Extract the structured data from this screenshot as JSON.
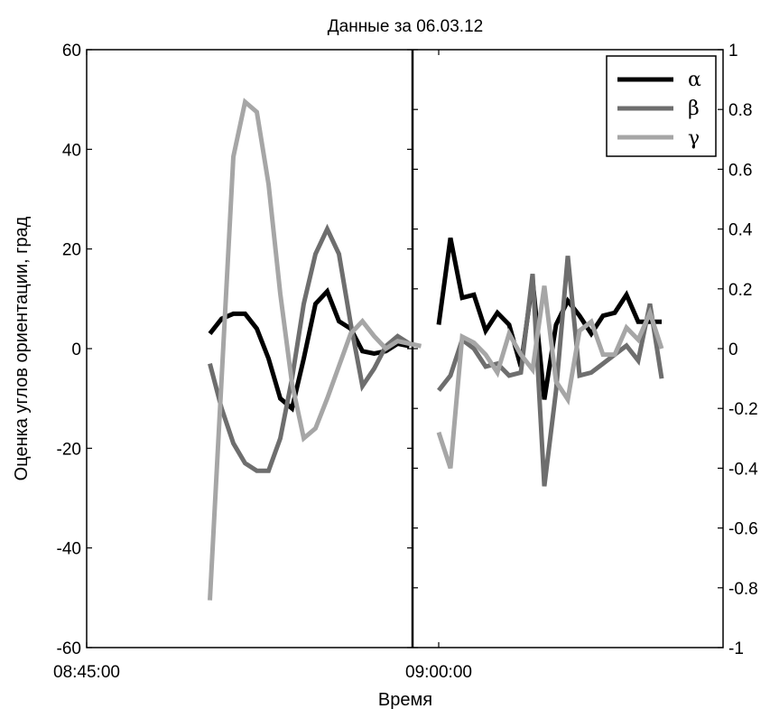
{
  "chart_data": {
    "type": "line",
    "title": "Данные за 06.03.12",
    "xlabel": "Время",
    "ylabel": "Оценка углов ориентации, град",
    "x_ticks": [
      "08:45:00",
      "09:00:00"
    ],
    "left_axis": {
      "ylim": [
        -60,
        60
      ],
      "ticks": [
        "-60",
        "-40",
        "-20",
        "0",
        "20",
        "40",
        "60"
      ]
    },
    "right_axis": {
      "ylim": [
        -1,
        1
      ],
      "ticks": [
        "-1",
        "-0.8",
        "-0.6",
        "-0.4",
        "-0.2",
        "0",
        "0.2",
        "0.4",
        "0.6",
        "0.8",
        "1"
      ]
    },
    "legend": {
      "placement": "top-right",
      "entries": [
        "α",
        "β",
        "γ"
      ]
    },
    "grid": false,
    "series_colors": {
      "alpha": "#000000",
      "beta": "#6e6e6e",
      "gamma": "#a6a6a6"
    },
    "left_panel": {
      "x": [
        "08:50:15",
        "08:50:45",
        "08:51:15",
        "08:51:45",
        "08:52:15",
        "08:52:45",
        "08:53:15",
        "08:53:45",
        "08:54:15",
        "08:54:45",
        "08:55:15",
        "08:55:45",
        "08:56:15",
        "08:56:45",
        "08:57:15",
        "08:57:45",
        "08:58:15",
        "08:58:45",
        "08:59:15",
        "08:59:45"
      ],
      "series": [
        {
          "name": "α",
          "values": [
            3,
            6,
            7,
            7,
            4,
            -2,
            -10,
            -12,
            -2,
            9,
            11.5,
            5.5,
            4,
            -0.5,
            -1,
            -0.5,
            1,
            0.5,
            null,
            null
          ]
        },
        {
          "name": "β",
          "values": [
            -3,
            -12,
            -19,
            -23,
            -24.5,
            -24.5,
            -18,
            -6,
            9,
            19,
            24,
            19,
            5,
            -7.5,
            -4,
            0.5,
            2.5,
            1,
            null,
            null
          ]
        },
        {
          "name": "γ",
          "values": [
            -50.5,
            -6,
            38.5,
            49.5,
            47.5,
            33,
            11,
            -7,
            -18,
            -16,
            -10,
            -3.5,
            3,
            5.5,
            2.5,
            0,
            1.5,
            1,
            0.5,
            null
          ]
        }
      ]
    },
    "right_panel": {
      "x": [
        "09:00:00",
        "09:00:30",
        "09:01:00",
        "09:01:30",
        "09:02:00",
        "09:02:30",
        "09:03:00",
        "09:03:30",
        "09:04:00",
        "09:04:30",
        "09:05:00",
        "09:05:30",
        "09:06:00",
        "09:06:30",
        "09:07:00",
        "09:07:30",
        "09:08:00",
        "09:08:30",
        "09:09:00",
        "09:09:30",
        "09:10:00"
      ],
      "series": [
        {
          "name": "α",
          "values": [
            0.08,
            0.37,
            0.17,
            0.18,
            0.06,
            0.12,
            0.08,
            -0.06,
            0.23,
            -0.17,
            0.08,
            0.16,
            0.11,
            0.05,
            0.11,
            0.12,
            0.18,
            0.09,
            0.09,
            0.09,
            null
          ]
        },
        {
          "name": "β",
          "values": [
            -0.14,
            -0.09,
            0.03,
            0,
            -0.06,
            -0.05,
            -0.09,
            -0.08,
            0.25,
            -0.46,
            -0.14,
            0.31,
            -0.09,
            -0.08,
            -0.05,
            -0.02,
            0.01,
            -0.04,
            0.15,
            -0.1,
            null
          ]
        },
        {
          "name": "γ",
          "values": [
            -0.28,
            -0.4,
            0.04,
            0.02,
            -0.02,
            -0.08,
            0.05,
            -0.02,
            -0.07,
            0.21,
            -0.11,
            -0.17,
            0.06,
            0.09,
            -0.02,
            -0.02,
            0.07,
            0.03,
            0.12,
            0,
            null
          ]
        }
      ]
    }
  }
}
